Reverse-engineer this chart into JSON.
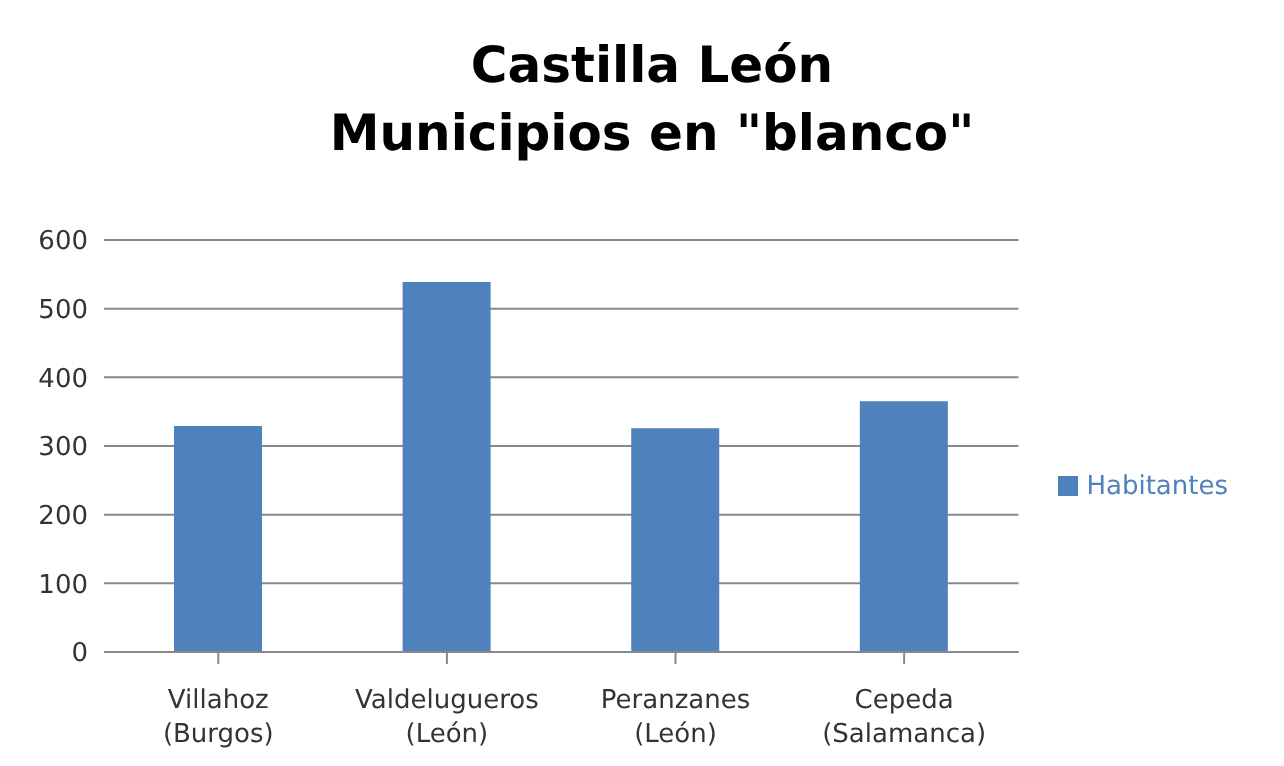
{
  "chart_data": {
    "type": "bar",
    "title": "Castilla León\nMunicipios en \"blanco\"",
    "categories": [
      "Villahoz (Burgos)",
      "Valdelugueros (León)",
      "Peranzanes (León)",
      "Cepeda (Salamanca)"
    ],
    "series": [
      {
        "name": "Habitantes",
        "color": "#4f81bd",
        "values": [
          329,
          539,
          326,
          365
        ]
      }
    ],
    "ylim": [
      0,
      600
    ],
    "yticks": [
      0,
      100,
      200,
      300,
      400,
      500,
      600
    ],
    "grid": "y",
    "legend": "right"
  }
}
